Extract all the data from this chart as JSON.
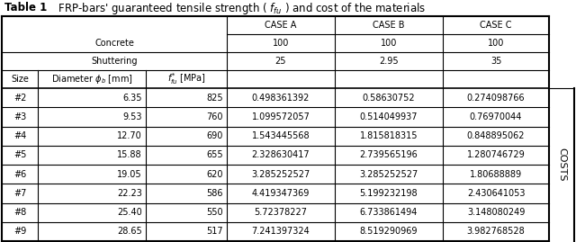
{
  "title_bold": "Table 1",
  "title_rest": "  FRP-bars’ guaranteed tensile strength (  $f_{fu}$  ) and cost of the materials",
  "data_rows": [
    [
      "#2",
      "6.35",
      "825",
      "0.498361392",
      "0.58630752",
      "0.274098766"
    ],
    [
      "#3",
      "9.53",
      "760",
      "1.099572057",
      "0.514049937",
      "0.76970044"
    ],
    [
      "#4",
      "12.70",
      "690",
      "1.543445568",
      "1.815818315",
      "0.848895062"
    ],
    [
      "#5",
      "15.88",
      "655",
      "2.328630417",
      "2.739565196",
      "1.280746729"
    ],
    [
      "#6",
      "19.05",
      "620",
      "3.285252527",
      "3.285252527",
      "1.80688889"
    ],
    [
      "#7",
      "22.23",
      "586",
      "4.419347369",
      "5.199232198",
      "2.430641053"
    ],
    [
      "#8",
      "25.40",
      "550",
      "5.72378227",
      "6.733861494",
      "3.148080249"
    ],
    [
      "#9",
      "28.65",
      "517",
      "7.241397324",
      "8.519290969",
      "3.982768528"
    ]
  ],
  "costs_label": "COSTS",
  "bg_color": "#ffffff",
  "line_color": "#000000",
  "font_size": 7.0,
  "title_fontsize": 8.5
}
